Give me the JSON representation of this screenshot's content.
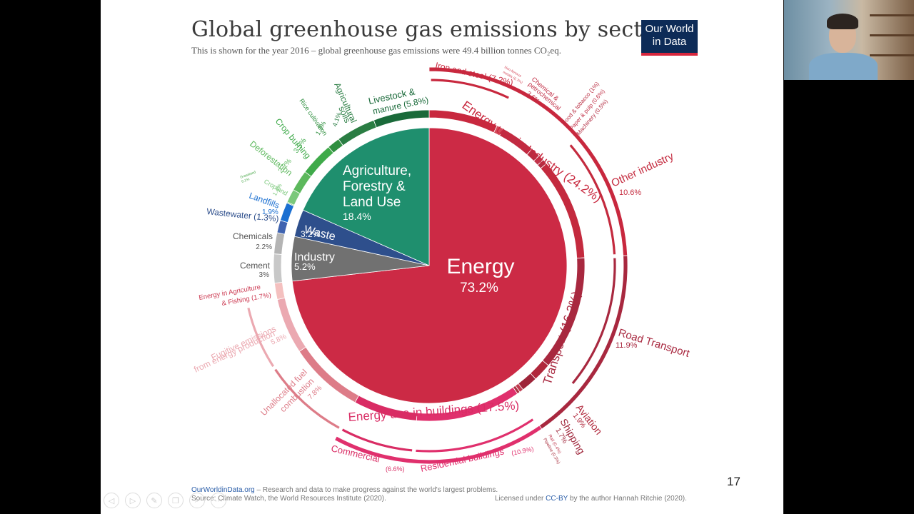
{
  "slide": {
    "title": "Global greenhouse gas emissions by sector",
    "subtitle": "This is shown for the year 2016 – global greenhouse gas emissions were 49.4 billion tonnes CO₂eq.",
    "logo_line1": "Our World",
    "logo_line2": "in Data",
    "footer_site": "OurWorldinData.org",
    "footer_tagline": " – Research and data to make progress against the world's largest problems.",
    "footer_source": "Source: Climate Watch, the World Resources Institute (2020).",
    "footer_license_prefix": "Licensed under ",
    "footer_license": "CC-BY",
    "footer_license_suffix": " by the author Hannah Ritchie (2020).",
    "page_number": "17"
  },
  "nav_icons": [
    "back-icon",
    "play-icon",
    "pen-icon",
    "copy-icon",
    "zoom-icon",
    "more-icon"
  ],
  "chart_data": {
    "type": "pie",
    "title": "Global greenhouse gas emissions by sector",
    "sectors": [
      {
        "name": "Energy",
        "value": 73.2,
        "label": "73.2%",
        "color": "#cc2a45"
      },
      {
        "name": "Industry",
        "value": 5.2,
        "label": "5.2%",
        "color": "#717171"
      },
      {
        "name": "Waste",
        "value": 3.2,
        "label": "3.2%",
        "color": "#2e4f8c"
      },
      {
        "name": "Agriculture, Forestry & Land Use",
        "value": 18.4,
        "label": "18.4%",
        "color": "#1f8f6e"
      }
    ],
    "subsectors": [
      {
        "name": "Iron and steel",
        "value": 7.2,
        "label": "(7.2%)",
        "color": "#c8283e"
      },
      {
        "name": "Non-ferrous metals",
        "value": 0.7,
        "label": "(0.7%)",
        "color": "#d4495a"
      },
      {
        "name": "Chemical & petrochemical",
        "value": 3.6,
        "label": "3.6%",
        "color": "#c02b42"
      },
      {
        "name": "Food & tobacco",
        "value": 1.0,
        "label": "(1%)",
        "color": "#b82c40"
      },
      {
        "name": "Paper & pulp",
        "value": 0.6,
        "label": "(0.6%)",
        "color": "#c23349"
      },
      {
        "name": "Machinery",
        "value": 0.5,
        "label": "(0.5%)",
        "color": "#b32d42"
      },
      {
        "name": "Other industry",
        "value": 10.6,
        "label": "10.6%",
        "color": "#c42a3e"
      },
      {
        "name": "Road Transport",
        "value": 11.9,
        "label": "11.9%",
        "color": "#a8283f"
      },
      {
        "name": "Aviation",
        "value": 1.9,
        "label": "1.9%",
        "color": "#b0283c"
      },
      {
        "name": "Shipping",
        "value": 1.7,
        "label": "1.7%",
        "color": "#9e2439"
      },
      {
        "name": "Rail",
        "value": 0.4,
        "label": "(0.4%)",
        "color": "#c03a4f"
      },
      {
        "name": "Pipeline",
        "value": 0.3,
        "label": "(0.3%)",
        "color": "#a9303f"
      },
      {
        "name": "Residential buildings",
        "value": 10.9,
        "label": "(10.9%)",
        "color": "#e0306d"
      },
      {
        "name": "Commercial",
        "value": 6.6,
        "label": "(6.6%)",
        "color": "#d92c64"
      },
      {
        "name": "Unallocated fuel combustion",
        "value": 7.8,
        "label": "7.8%",
        "color": "#dd7c88"
      },
      {
        "name": "Fugitive emissions from energy production",
        "value": 5.8,
        "label": "5.8%",
        "color": "#eba9b1"
      },
      {
        "name": "Energy in Agriculture & Fishing",
        "value": 1.7,
        "label": "(1.7%)",
        "color": "#f4c0bf"
      },
      {
        "name": "Cement",
        "value": 3.0,
        "label": "3%",
        "color": "#c8c8c8"
      },
      {
        "name": "Chemicals",
        "value": 2.2,
        "label": "2.2%",
        "color": "#b4b4b4"
      },
      {
        "name": "Wastewater",
        "value": 1.3,
        "label": "(1.3%)",
        "color": "#3f63b0"
      },
      {
        "name": "Landfills",
        "value": 1.9,
        "label": "1.9%",
        "color": "#1a6fd1"
      },
      {
        "name": "Grassland",
        "value": 0.1,
        "label": "0.1%",
        "color": "#4aa84a"
      },
      {
        "name": "Cropland",
        "value": 1.4,
        "label": "1.4%",
        "color": "#7bc87b"
      },
      {
        "name": "Deforestation",
        "value": 2.2,
        "label": "2.2%",
        "color": "#5cb85c"
      },
      {
        "name": "Crop burning",
        "value": 3.5,
        "label": "3.5%",
        "color": "#3faa4a"
      },
      {
        "name": "Rice cultivation",
        "value": 1.3,
        "label": "1.3%",
        "color": "#2f8f3f"
      },
      {
        "name": "Agricultural soils",
        "value": 4.1,
        "label": "4.1%",
        "color": "#2a7d43"
      },
      {
        "name": "Livestock & manure",
        "value": 5.8,
        "label": "(5.8%)",
        "color": "#1a6a3a"
      }
    ],
    "groups": [
      {
        "name": "Energy use in Industry",
        "value": 24.2,
        "label": "(24.2%)",
        "color": "#c8283e"
      },
      {
        "name": "Transport",
        "value": 16.2,
        "label": "(16.2%)",
        "color": "#a8283f"
      },
      {
        "name": "Energy use in buildings",
        "value": 17.5,
        "label": "(17.5%)",
        "color": "#e0306d"
      }
    ]
  }
}
